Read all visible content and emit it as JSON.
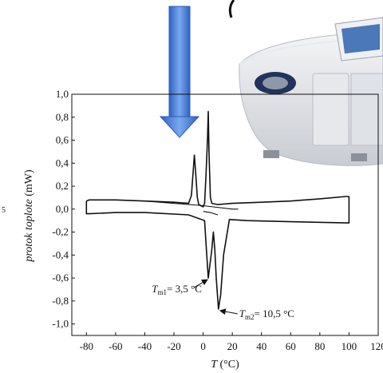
{
  "chart_data": {
    "type": "line",
    "title": "",
    "xlabel": "T (°C)",
    "ylabel": "protok toplote (mW)",
    "xlim": [
      -90,
      120
    ],
    "ylim": [
      -1.1,
      1.0
    ],
    "x_ticks": [
      "-80",
      "-60",
      "-40",
      "-20",
      "0",
      "20",
      "40",
      "60",
      "80",
      "100",
      "120"
    ],
    "y_ticks": [
      "1,0",
      "0,8",
      "0,6",
      "0,4",
      "0,2",
      "0,0",
      "-0,2",
      "-0,4",
      "-0,6",
      "-0,8",
      "-1,0"
    ],
    "side_text": "5",
    "series": [
      {
        "points": [
          [
            -80,
            0.07
          ],
          [
            -78,
            0.08
          ],
          [
            -60,
            0.08
          ],
          [
            -40,
            0.07
          ],
          [
            -20,
            0.06
          ],
          [
            -10,
            0.05
          ],
          [
            -8,
            0.12
          ],
          [
            -7,
            0.3
          ],
          [
            -6,
            0.47
          ],
          [
            -5,
            0.3
          ],
          [
            -4,
            0.1
          ],
          [
            -3,
            0.04
          ],
          [
            0,
            0.02
          ],
          [
            1,
            0.05
          ],
          [
            2,
            0.3
          ],
          [
            3,
            0.62
          ],
          [
            3.5,
            0.85
          ],
          [
            4,
            0.5
          ],
          [
            5,
            0.1
          ],
          [
            6,
            0.05
          ],
          [
            10,
            0.04
          ],
          [
            20,
            0.05
          ],
          [
            40,
            0.06
          ],
          [
            60,
            0.07
          ],
          [
            80,
            0.09
          ],
          [
            98,
            0.11
          ],
          [
            100,
            0.11
          ],
          [
            100,
            -0.12
          ],
          [
            98,
            -0.12
          ],
          [
            60,
            -0.11
          ],
          [
            30,
            -0.1
          ],
          [
            18,
            -0.09
          ],
          [
            14,
            -0.4
          ],
          [
            12,
            -0.75
          ],
          [
            10.5,
            -0.87
          ],
          [
            9,
            -0.6
          ],
          [
            8,
            -0.35
          ],
          [
            7,
            -0.2
          ],
          [
            6,
            -0.35
          ],
          [
            4.5,
            -0.5
          ],
          [
            3.5,
            -0.6
          ],
          [
            2,
            -0.3
          ],
          [
            1,
            -0.1
          ],
          [
            -10,
            -0.05
          ],
          [
            -40,
            -0.03
          ],
          [
            -60,
            -0.03
          ],
          [
            -78,
            -0.04
          ],
          [
            -80,
            -0.04
          ],
          [
            -80,
            0.07
          ]
        ]
      },
      {
        "points": [
          [
            -40,
            0.07
          ],
          [
            0,
            0.03
          ],
          [
            20,
            0.0
          ],
          [
            24,
            0.0
          ]
        ]
      },
      {
        "points": [
          [
            0,
            -0.02
          ],
          [
            5,
            -0.03
          ],
          [
            10,
            -0.05
          ]
        ]
      }
    ],
    "annotations": [
      {
        "label": "T",
        "sub": "m1",
        "value": "= 3,5 °C",
        "target_x": 3.5,
        "target_y": -0.6
      },
      {
        "label": "T",
        "sub": "m2",
        "value": "= 10,5 °C",
        "target_x": 10.5,
        "target_y": -0.87
      }
    ],
    "arrow_color": "#4a7fd6"
  }
}
